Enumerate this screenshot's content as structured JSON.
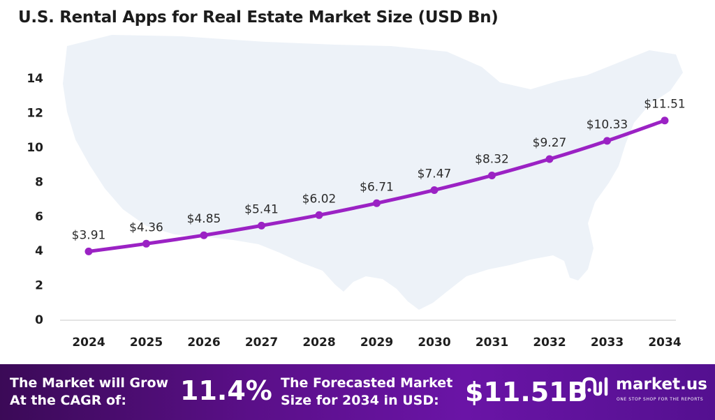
{
  "chart_data": {
    "type": "line",
    "title": "U.S. Rental Apps for Real Estate Market Size (USD Bn)",
    "xlabel": "",
    "ylabel": "",
    "ylim": [
      0,
      14
    ],
    "y_ticks": [
      "0",
      "2",
      "4",
      "6",
      "8",
      "10",
      "12",
      "14"
    ],
    "categories": [
      "2024",
      "2025",
      "2026",
      "2027",
      "2028",
      "2029",
      "2030",
      "2031",
      "2032",
      "2033",
      "2034"
    ],
    "values": [
      3.91,
      4.36,
      4.85,
      5.41,
      6.02,
      6.71,
      7.47,
      8.32,
      9.27,
      10.33,
      11.51
    ],
    "data_labels": [
      "$3.91",
      "$4.36",
      "$4.85",
      "$5.41",
      "$6.02",
      "$6.71",
      "$7.47",
      "$8.32",
      "$9.27",
      "$10.33",
      "$11.51"
    ],
    "grid": false,
    "legend": "none",
    "series_color": "#9b22c4"
  },
  "footer": {
    "cagr_line1": "The Market will Grow",
    "cagr_line2": "At the CAGR of:",
    "cagr_value": "11.4%",
    "forecast_line1": "The Forecasted Market",
    "forecast_line2": "Size for 2034 in USD:",
    "forecast_value": "$11.51B"
  },
  "brand": {
    "name": "market.us",
    "tagline": "ONE STOP SHOP FOR THE REPORTS",
    "icon": "market-us-logo-icon"
  },
  "colors": {
    "footer_dark": "#3b0a57",
    "footer_mid": "#6a14a6",
    "map_fill": "#edf2f8"
  }
}
